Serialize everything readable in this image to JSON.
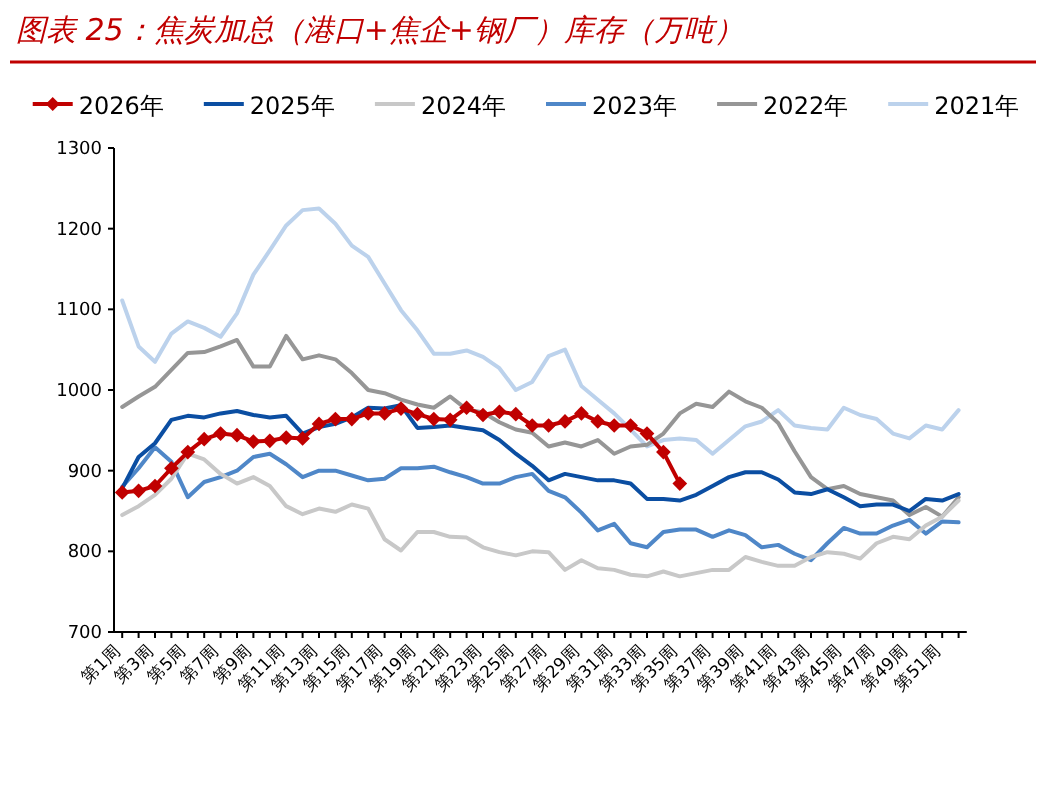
{
  "chart_data": {
    "type": "line",
    "title": "图表 25：焦炭加总（港口+焦企+钢厂）库存（万吨）",
    "categories": [
      "第1周",
      null,
      "第3周",
      null,
      "第5周",
      null,
      "第7周",
      null,
      "第9周",
      null,
      "第11周",
      null,
      "第13周",
      null,
      "第15周",
      null,
      "第17周",
      null,
      "第19周",
      null,
      "第21周",
      null,
      "第23周",
      null,
      "第25周",
      null,
      "第27周",
      null,
      "第29周",
      null,
      "第31周",
      null,
      "第33周",
      null,
      "第35周",
      null,
      "第37周",
      null,
      "第39周",
      null,
      "第41周",
      null,
      "第43周",
      null,
      "第45周",
      null,
      "第47周",
      null,
      "第49周",
      null,
      "第51周",
      null
    ],
    "ylim": [
      700,
      1300
    ],
    "yticks": [
      700,
      800,
      900,
      1000,
      1100,
      1200,
      1300
    ],
    "legend": "top",
    "series": [
      {
        "name": "2021年",
        "color": "#bcd2ec",
        "values": [
          1111,
          1054,
          1035,
          1070,
          1085,
          1077,
          1066,
          1095,
          1143,
          1173,
          1204,
          1223,
          1225,
          1206,
          1179,
          1165,
          1132,
          1099,
          1074,
          1045,
          1045,
          1049,
          1041,
          1027,
          1000,
          1010,
          1042,
          1050,
          1005,
          988,
          971,
          951,
          930,
          938,
          940,
          938,
          921,
          938,
          955,
          961,
          975,
          956,
          953,
          951,
          978,
          969,
          964,
          946,
          940,
          956,
          951,
          975
        ]
      },
      {
        "name": "2022年",
        "color": "#969696",
        "values": [
          979,
          992,
          1004,
          1025,
          1046,
          1047,
          1054,
          1062,
          1029,
          1029,
          1067,
          1038,
          1043,
          1038,
          1021,
          1000,
          996,
          988,
          982,
          978,
          992,
          976,
          972,
          960,
          951,
          947,
          930,
          935,
          930,
          938,
          921,
          930,
          932,
          946,
          971,
          983,
          979,
          998,
          986,
          978,
          959,
          924,
          892,
          877,
          881,
          871,
          867,
          863,
          845,
          855,
          843,
          867
        ]
      },
      {
        "name": "2023年",
        "color": "#4f87c8",
        "values": [
          880,
          903,
          929,
          911,
          867,
          886,
          892,
          900,
          917,
          921,
          908,
          892,
          900,
          900,
          894,
          888,
          890,
          903,
          903,
          905,
          898,
          892,
          884,
          884,
          892,
          896,
          875,
          867,
          848,
          826,
          834,
          810,
          805,
          824,
          827,
          827,
          818,
          826,
          820,
          805,
          808,
          797,
          789,
          810,
          829,
          822,
          822,
          832,
          839,
          822,
          837,
          836
        ]
      },
      {
        "name": "2024年",
        "color": "#c8c8c8",
        "values": [
          845,
          856,
          870,
          890,
          921,
          914,
          896,
          884,
          892,
          881,
          856,
          846,
          853,
          849,
          858,
          853,
          815,
          801,
          824,
          824,
          818,
          817,
          805,
          799,
          795,
          800,
          799,
          777,
          789,
          779,
          777,
          771,
          769,
          775,
          769,
          773,
          777,
          777,
          793,
          787,
          782,
          782,
          793,
          799,
          797,
          791,
          810,
          818,
          815,
          832,
          843,
          863
        ]
      },
      {
        "name": "2025年",
        "color": "#0b4ea2",
        "values": [
          878,
          917,
          934,
          963,
          968,
          966,
          971,
          974,
          969,
          966,
          968,
          946,
          954,
          958,
          966,
          978,
          977,
          981,
          953,
          954,
          956,
          953,
          950,
          938,
          921,
          906,
          888,
          896,
          892,
          888,
          888,
          884,
          865,
          865,
          863,
          870,
          881,
          892,
          898,
          898,
          889,
          873,
          871,
          877,
          867,
          856,
          858,
          858,
          850,
          865,
          863,
          871
        ]
      },
      {
        "name": "2026年",
        "color": "#c00000",
        "marker": "diamond",
        "values": [
          873,
          875,
          881,
          903,
          923,
          939,
          946,
          944,
          936,
          937,
          941,
          940,
          958,
          964,
          964,
          971,
          971,
          977,
          970,
          964,
          963,
          978,
          969,
          973,
          970,
          956,
          956,
          961,
          971,
          961,
          956,
          956,
          946,
          923,
          884,
          null,
          null,
          null,
          null,
          null,
          null,
          null,
          null,
          null,
          null,
          null,
          null,
          null,
          null,
          null,
          null,
          null
        ]
      }
    ]
  }
}
